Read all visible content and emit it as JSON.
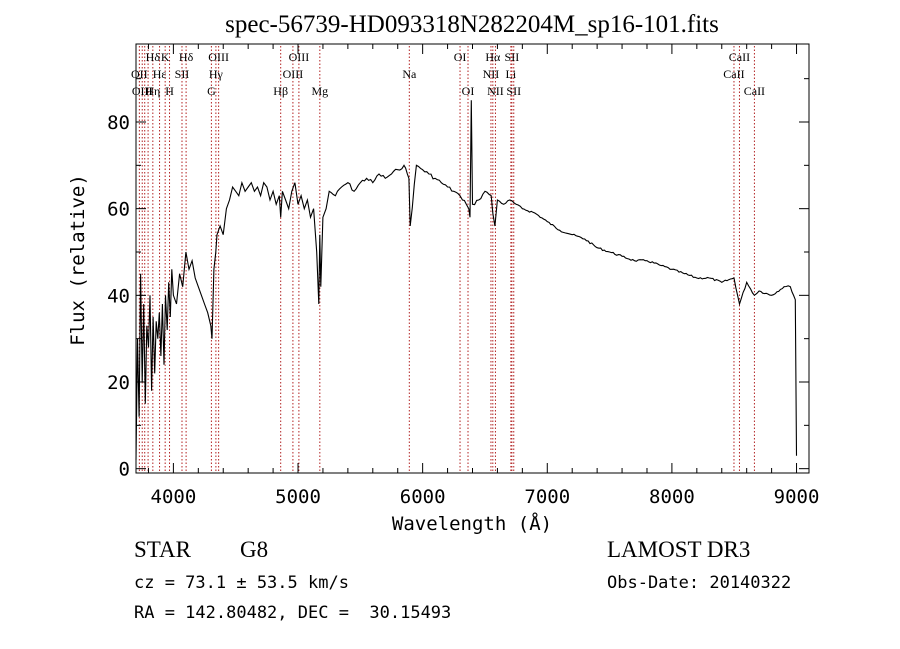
{
  "chart_data": {
    "type": "line",
    "title": "spec-56739-HD093318N282204M_sp16-101.fits",
    "xlabel": "Wavelength (Å)",
    "ylabel": "Flux (relative)",
    "xlim": [
      3700,
      9100
    ],
    "ylim": [
      -1,
      98
    ],
    "xticks": [
      4000,
      5000,
      6000,
      7000,
      8000,
      9000
    ],
    "yticks": [
      0,
      20,
      40,
      60,
      80
    ],
    "grid": false,
    "line_color": "#000000",
    "marker_color": "#b22222",
    "series": [
      {
        "x": [
          3700,
          3712,
          3725,
          3737,
          3750,
          3762,
          3775,
          3787,
          3800,
          3812,
          3825,
          3837,
          3850,
          3862,
          3875,
          3887,
          3900,
          3912,
          3925,
          3937,
          3950,
          3962,
          3975,
          3987,
          4000,
          4025,
          4050,
          4075,
          4100,
          4125,
          4150,
          4175,
          4200,
          4225,
          4250,
          4275,
          4300,
          4310,
          4325,
          4340,
          4350,
          4375,
          4400,
          4425,
          4450,
          4475,
          4500,
          4525,
          4550,
          4575,
          4600,
          4625,
          4650,
          4675,
          4700,
          4725,
          4750,
          4775,
          4800,
          4825,
          4850,
          4861,
          4875,
          4900,
          4925,
          4950,
          4975,
          5000,
          5025,
          5050,
          5075,
          5100,
          5125,
          5150,
          5167,
          5175,
          5183,
          5200,
          5225,
          5250,
          5300,
          5350,
          5400,
          5450,
          5500,
          5550,
          5600,
          5650,
          5700,
          5750,
          5800,
          5850,
          5890,
          5900,
          5950,
          6000,
          6050,
          6100,
          6150,
          6200,
          6250,
          6300,
          6320,
          6350,
          6370,
          6380,
          6390,
          6400,
          6450,
          6500,
          6550,
          6563,
          6580,
          6600,
          6650,
          6700,
          6750,
          6800,
          6900,
          7000,
          7100,
          7200,
          7300,
          7400,
          7500,
          7600,
          7700,
          7800,
          7900,
          8000,
          8100,
          8200,
          8300,
          8400,
          8498,
          8542,
          8600,
          8662,
          8700,
          8800,
          8900,
          8950,
          8990,
          9000
        ],
        "y": [
          2,
          30,
          12,
          45,
          20,
          38,
          15,
          33,
          28,
          40,
          18,
          35,
          22,
          34,
          30,
          36,
          26,
          38,
          24,
          40,
          32,
          43,
          35,
          46,
          40,
          38,
          45,
          42,
          50,
          46,
          48,
          44,
          42,
          40,
          38,
          36,
          33,
          30,
          46,
          50,
          54,
          56,
          54,
          60,
          62,
          65,
          64,
          63,
          66,
          64,
          65,
          66,
          64,
          65,
          63,
          66,
          65,
          62,
          64,
          61,
          63,
          58,
          64,
          62,
          60,
          64,
          66,
          61,
          63,
          60,
          62,
          58,
          60,
          50,
          38,
          54,
          42,
          58,
          60,
          64,
          63,
          65,
          66,
          64,
          66,
          67,
          66,
          68,
          67,
          68,
          69,
          70,
          67,
          56,
          70,
          69,
          68,
          67,
          66,
          65,
          64,
          63,
          62,
          61,
          60,
          58,
          85,
          61,
          62,
          64,
          63,
          59,
          56,
          62,
          61,
          62,
          61,
          60,
          59,
          57,
          55,
          54,
          53,
          51,
          50,
          49,
          48,
          48,
          47,
          46,
          45,
          44,
          44,
          43,
          44,
          38,
          43,
          40,
          41,
          40,
          42,
          42,
          39,
          3
        ]
      }
    ],
    "annotations": [
      {
        "label": "Hδ",
        "x": 3835,
        "row": 0
      },
      {
        "label": "OII",
        "x": 3727,
        "row": 1
      },
      {
        "label": "OIII",
        "x": 3750,
        "row": 2
      },
      {
        "label": "Hε",
        "x": 3889,
        "row": 1
      },
      {
        "label": "Hη",
        "x": 3835,
        "row": 2
      },
      {
        "label": "K",
        "x": 3934,
        "row": 0
      },
      {
        "label": "H",
        "x": 3969,
        "row": 2
      },
      {
        "label": "SII",
        "x": 4069,
        "row": 1
      },
      {
        "label": "Hδ",
        "x": 4102,
        "row": 0
      },
      {
        "label": "OIII",
        "x": 4363,
        "row": 0
      },
      {
        "label": "Hγ",
        "x": 4341,
        "row": 1
      },
      {
        "label": "G",
        "x": 4305,
        "row": 2
      },
      {
        "label": "Hβ",
        "x": 4861,
        "row": 2
      },
      {
        "label": "OIII",
        "x": 5007,
        "row": 0
      },
      {
        "label": "OIII",
        "x": 4959,
        "row": 1
      },
      {
        "label": "Mg",
        "x": 5175,
        "row": 2
      },
      {
        "label": "Na",
        "x": 5893,
        "row": 1
      },
      {
        "label": "OI",
        "x": 6300,
        "row": 0
      },
      {
        "label": "OI",
        "x": 6364,
        "row": 2
      },
      {
        "label": "Hα",
        "x": 6563,
        "row": 0
      },
      {
        "label": "SII",
        "x": 6716,
        "row": 0
      },
      {
        "label": "NII",
        "x": 6548,
        "row": 1
      },
      {
        "label": "Li",
        "x": 6708,
        "row": 1
      },
      {
        "label": "NII",
        "x": 6584,
        "row": 2
      },
      {
        "label": "SII",
        "x": 6731,
        "row": 2
      },
      {
        "label": "CaII",
        "x": 8542,
        "row": 0
      },
      {
        "label": "CaII",
        "x": 8498,
        "row": 1
      },
      {
        "label": "CaII",
        "x": 8662,
        "row": 2
      }
    ],
    "line_markers": [
      3727,
      3750,
      3770,
      3797,
      3835,
      3889,
      3934,
      3969,
      4069,
      4102,
      4305,
      4341,
      4363,
      4861,
      4959,
      5007,
      5175,
      5893,
      6300,
      6364,
      6548,
      6563,
      6584,
      6708,
      6716,
      6731,
      8498,
      8542,
      8662
    ]
  },
  "info": {
    "object_class": "STAR",
    "subclass": "G8",
    "survey": "LAMOST DR3",
    "cz": "cz = 73.1 ± 53.5 km/s",
    "obs_date": "Obs-Date: 20140322",
    "coords": "RA = 142.80482, DEC =  30.15493"
  }
}
